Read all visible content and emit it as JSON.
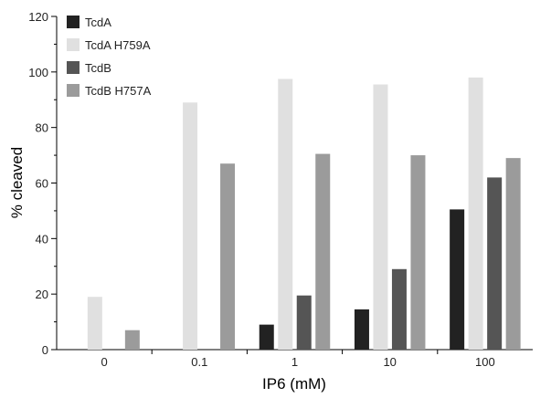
{
  "chart_data": {
    "type": "bar",
    "categories": [
      "0",
      "0.1",
      "1",
      "10",
      "100"
    ],
    "series": [
      {
        "name": "TcdA",
        "color": "#222222",
        "values": [
          0,
          0,
          9,
          14.5,
          50.5
        ]
      },
      {
        "name": "TcdA H759A",
        "color": "#e0e0e0",
        "values": [
          19,
          89,
          97.5,
          95.5,
          98
        ]
      },
      {
        "name": "TcdB",
        "color": "#555555",
        "values": [
          0,
          0,
          19.5,
          29,
          62
        ]
      },
      {
        "name": "TcdB H757A",
        "color": "#9b9b9b",
        "values": [
          7,
          67,
          70.5,
          70,
          69
        ]
      }
    ],
    "xlabel": "IP6 (mM)",
    "ylabel": "% cleaved",
    "ylim": [
      0,
      120
    ],
    "yticks": [
      "0",
      "20",
      "40",
      "60",
      "80",
      "100",
      "120"
    ],
    "grid": false,
    "legend_position": "top-left"
  }
}
